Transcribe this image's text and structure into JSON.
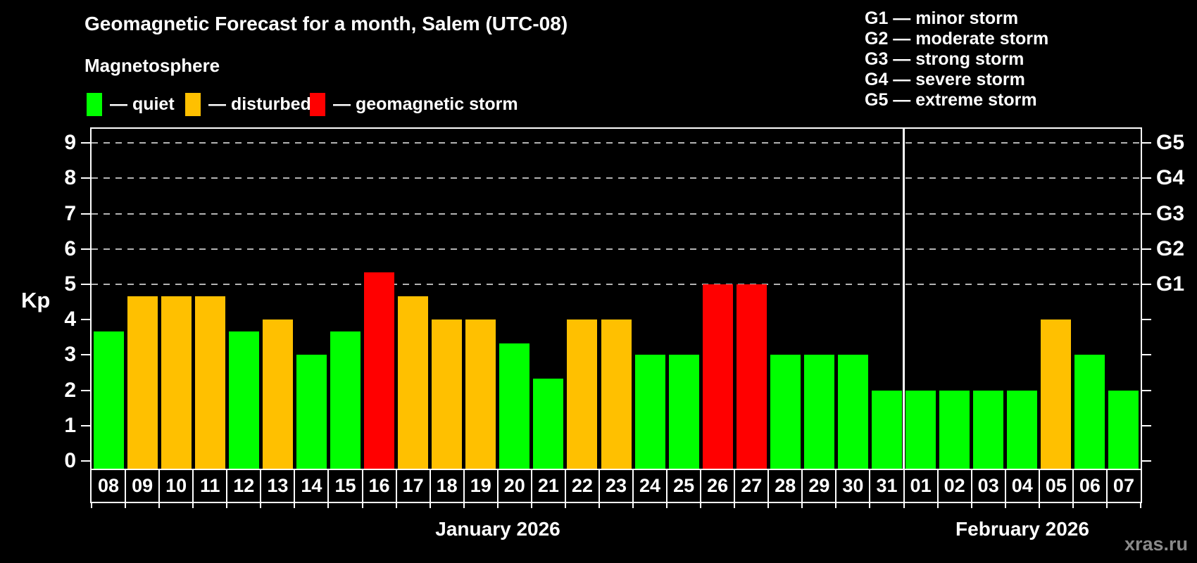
{
  "header": {
    "title": "Geomagnetic Forecast for a month, Salem (UTC-08)",
    "subtitle": "Magnetosphere"
  },
  "legend": {
    "items": [
      {
        "status": "quiet",
        "label": "— quiet"
      },
      {
        "status": "disturbed",
        "label": "— disturbed"
      },
      {
        "status": "storm",
        "label": "— geomagnetic storm"
      }
    ]
  },
  "g_legend": {
    "lines": [
      "G1 — minor storm",
      "G2 — moderate storm",
      "G3 — strong storm",
      "G4 — severe storm",
      "G5 — extreme storm"
    ]
  },
  "watermark": {
    "text": "xras.ru"
  },
  "chart_data": {
    "type": "bar",
    "title": "Geomagnetic Forecast for a month, Salem (UTC-08)",
    "subtitle": "Magnetosphere",
    "ylabel": "Kp",
    "ylim": [
      -0.22,
      9.4
    ],
    "grid": "horizontal-dashed-at-kp-5-to-9",
    "legend_position": "top",
    "gridline_kps": [
      5,
      6,
      7,
      8,
      9
    ],
    "y_ticks": [
      0,
      1,
      2,
      3,
      4,
      5,
      6,
      7,
      8,
      9
    ],
    "right_axis_labels": [
      {
        "kp": 5,
        "label": "G1"
      },
      {
        "kp": 6,
        "label": "G2"
      },
      {
        "kp": 7,
        "label": "G3"
      },
      {
        "kp": 8,
        "label": "G4"
      },
      {
        "kp": 9,
        "label": "G5"
      }
    ],
    "colors": {
      "quiet": "#00ff00",
      "disturbed": "#ffc000",
      "storm": "#ff0000"
    },
    "months": [
      {
        "label": "January 2026",
        "days": [
          {
            "day": "08",
            "kp": 3.67,
            "status": "quiet"
          },
          {
            "day": "09",
            "kp": 4.67,
            "status": "disturbed"
          },
          {
            "day": "10",
            "kp": 4.67,
            "status": "disturbed"
          },
          {
            "day": "11",
            "kp": 4.67,
            "status": "disturbed"
          },
          {
            "day": "12",
            "kp": 3.67,
            "status": "quiet"
          },
          {
            "day": "13",
            "kp": 4.0,
            "status": "disturbed"
          },
          {
            "day": "14",
            "kp": 3.0,
            "status": "quiet"
          },
          {
            "day": "15",
            "kp": 3.67,
            "status": "quiet"
          },
          {
            "day": "16",
            "kp": 5.33,
            "status": "storm"
          },
          {
            "day": "17",
            "kp": 4.67,
            "status": "disturbed"
          },
          {
            "day": "18",
            "kp": 4.0,
            "status": "disturbed"
          },
          {
            "day": "19",
            "kp": 4.0,
            "status": "disturbed"
          },
          {
            "day": "20",
            "kp": 3.33,
            "status": "quiet"
          },
          {
            "day": "21",
            "kp": 2.33,
            "status": "quiet"
          },
          {
            "day": "22",
            "kp": 4.0,
            "status": "disturbed"
          },
          {
            "day": "23",
            "kp": 4.0,
            "status": "disturbed"
          },
          {
            "day": "24",
            "kp": 3.0,
            "status": "quiet"
          },
          {
            "day": "25",
            "kp": 3.0,
            "status": "quiet"
          },
          {
            "day": "26",
            "kp": 5.0,
            "status": "storm"
          },
          {
            "day": "27",
            "kp": 5.0,
            "status": "storm"
          },
          {
            "day": "28",
            "kp": 3.0,
            "status": "quiet"
          },
          {
            "day": "29",
            "kp": 3.0,
            "status": "quiet"
          },
          {
            "day": "30",
            "kp": 3.0,
            "status": "quiet"
          },
          {
            "day": "31",
            "kp": 2.0,
            "status": "quiet"
          }
        ]
      },
      {
        "label": "February 2026",
        "days": [
          {
            "day": "01",
            "kp": 2.0,
            "status": "quiet"
          },
          {
            "day": "02",
            "kp": 2.0,
            "status": "quiet"
          },
          {
            "day": "03",
            "kp": 2.0,
            "status": "quiet"
          },
          {
            "day": "04",
            "kp": 2.0,
            "status": "quiet"
          },
          {
            "day": "05",
            "kp": 4.0,
            "status": "disturbed"
          },
          {
            "day": "06",
            "kp": 3.0,
            "status": "quiet"
          },
          {
            "day": "07",
            "kp": 2.0,
            "status": "quiet"
          }
        ]
      }
    ]
  }
}
